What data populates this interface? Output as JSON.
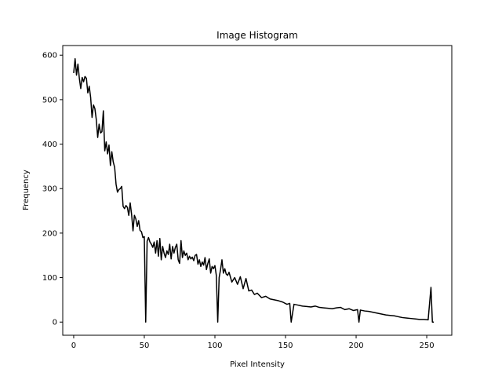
{
  "chart_data": {
    "type": "line",
    "title": "Image Histogram",
    "xlabel": "Pixel Intensity",
    "ylabel": "Frequency",
    "xlim": [
      -7.75,
      267.75
    ],
    "ylim": [
      -29.6,
      621.6
    ],
    "xticks": [
      0,
      50,
      100,
      150,
      200,
      250
    ],
    "yticks": [
      0,
      100,
      200,
      300,
      400,
      500,
      600
    ],
    "grid": false,
    "legend": "none",
    "series": [
      {
        "color": "#000000",
        "x": [
          0,
          1,
          2,
          3,
          4,
          5,
          6,
          7,
          8,
          9,
          10,
          11,
          12,
          13,
          14,
          15,
          16,
          17,
          18,
          19,
          20,
          21,
          22,
          23,
          24,
          25,
          26,
          27,
          28,
          29,
          30,
          31,
          32,
          33,
          34,
          35,
          36,
          37,
          38,
          39,
          40,
          41,
          42,
          43,
          44,
          45,
          46,
          47,
          48,
          49,
          50,
          51,
          52,
          53,
          54,
          55,
          56,
          57,
          58,
          59,
          60,
          61,
          62,
          63,
          64,
          65,
          66,
          67,
          68,
          69,
          70,
          71,
          72,
          73,
          74,
          75,
          76,
          77,
          78,
          79,
          80,
          81,
          82,
          83,
          84,
          85,
          86,
          87,
          88,
          89,
          90,
          91,
          92,
          93,
          94,
          95,
          96,
          97,
          98,
          99,
          100,
          101,
          102,
          103,
          104,
          105,
          106,
          107,
          108,
          109,
          110,
          112,
          114,
          116,
          118,
          120,
          122,
          124,
          126,
          128,
          130,
          133,
          136,
          139,
          142,
          145,
          148,
          151,
          153,
          154,
          156,
          159,
          162,
          165,
          168,
          171,
          174,
          177,
          180,
          183,
          186,
          189,
          192,
          195,
          198,
          201,
          202,
          203,
          206,
          209,
          212,
          215,
          218,
          221,
          224,
          227,
          230,
          233,
          236,
          239,
          242,
          245,
          248,
          251,
          253,
          254,
          255
        ],
        "y": [
          560,
          592,
          555,
          580,
          548,
          525,
          550,
          540,
          552,
          548,
          515,
          530,
          505,
          460,
          488,
          480,
          455,
          415,
          445,
          425,
          428,
          475,
          385,
          405,
          378,
          398,
          352,
          383,
          360,
          348,
          310,
          292,
          298,
          300,
          305,
          260,
          255,
          262,
          258,
          240,
          268,
          242,
          205,
          240,
          232,
          215,
          228,
          206,
          203,
          190,
          192,
          0,
          182,
          190,
          180,
          175,
          168,
          180,
          155,
          183,
          148,
          188,
          140,
          170,
          155,
          145,
          160,
          152,
          175,
          142,
          170,
          155,
          168,
          175,
          140,
          132,
          183,
          145,
          160,
          150,
          155,
          140,
          148,
          142,
          146,
          138,
          150,
          152,
          130,
          140,
          125,
          135,
          128,
          145,
          118,
          132,
          142,
          110,
          125,
          120,
          127,
          105,
          0,
          100,
          118,
          140,
          110,
          120,
          108,
          105,
          112,
          90,
          100,
          85,
          102,
          75,
          98,
          70,
          72,
          62,
          65,
          55,
          58,
          52,
          50,
          48,
          45,
          40,
          42,
          0,
          40,
          38,
          36,
          35,
          34,
          36,
          33,
          32,
          31,
          30,
          32,
          33,
          28,
          30,
          26,
          28,
          0,
          27,
          25,
          24,
          22,
          20,
          18,
          16,
          15,
          14,
          12,
          10,
          9,
          8,
          7,
          6,
          6,
          5,
          78,
          0,
          0
        ]
      }
    ]
  }
}
